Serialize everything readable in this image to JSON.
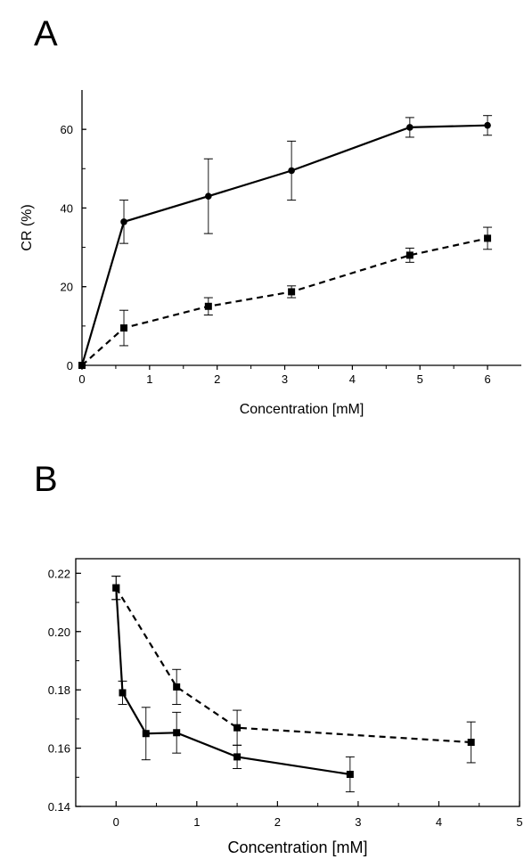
{
  "panels": {
    "a": {
      "label": "A"
    },
    "b": {
      "label": "B"
    }
  },
  "chart_data": [
    {
      "type": "line",
      "title": "",
      "xlabel": "Concentration [mM]",
      "ylabel": "CR (%)",
      "xlim": [
        0,
        6.5
      ],
      "ylim": [
        0,
        70
      ],
      "xticks": [
        0,
        1,
        2,
        3,
        4,
        5,
        6
      ],
      "yticks": [
        0,
        20,
        40,
        60
      ],
      "grid": false,
      "series": [
        {
          "style": "solid",
          "marker": "circle",
          "x": [
            0,
            0.62,
            1.87,
            3.1,
            4.85,
            6.0
          ],
          "y": [
            0,
            36.5,
            43,
            49.5,
            60.5,
            61
          ],
          "err": [
            0,
            5.5,
            9.5,
            7.5,
            2.5,
            2.5
          ]
        },
        {
          "style": "dashed",
          "marker": "square",
          "x": [
            0,
            0.62,
            1.87,
            3.1,
            4.85,
            6.0
          ],
          "y": [
            0,
            9.5,
            15,
            18.7,
            28,
            32.3
          ],
          "err": [
            0,
            4.5,
            2.2,
            1.5,
            1.8,
            2.8
          ]
        }
      ]
    },
    {
      "type": "line",
      "title": "",
      "xlabel": "Concentration [mM]",
      "ylabel": "",
      "xlim": [
        -0.5,
        5
      ],
      "ylim": [
        0.14,
        0.225
      ],
      "xticks": [
        0,
        1,
        2,
        3,
        4,
        5
      ],
      "yticks": [
        0.14,
        0.16,
        0.18,
        0.2,
        0.22
      ],
      "yticklabels": [
        "0.14",
        "0.16",
        "0.18",
        "0.20",
        "0.22"
      ],
      "grid": false,
      "series": [
        {
          "style": "solid",
          "marker": "square",
          "x": [
            0,
            0.08,
            0.37,
            0.75,
            1.5,
            2.9
          ],
          "y": [
            0.215,
            0.179,
            0.165,
            0.1653,
            0.157,
            0.151
          ],
          "err": [
            0.004,
            0.004,
            0.009,
            0.007,
            0.004,
            0.006
          ]
        },
        {
          "style": "dashed",
          "marker": "square",
          "x": [
            0,
            0.75,
            1.5,
            4.4
          ],
          "y": [
            0.215,
            0.181,
            0.167,
            0.162
          ],
          "err": [
            0.004,
            0.006,
            0.006,
            0.007
          ]
        }
      ]
    }
  ]
}
